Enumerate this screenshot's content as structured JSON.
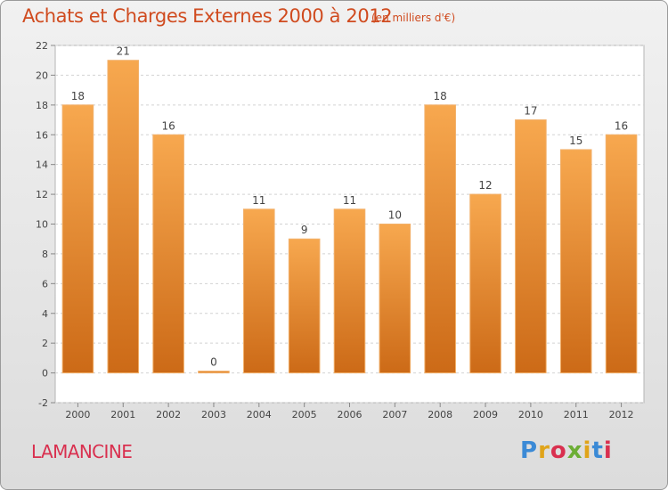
{
  "header": {
    "title": "Achats et Charges Externes 2000 à 2012",
    "subtitle": "(en milliers d'€)"
  },
  "footer": {
    "location": "LAMANCINE",
    "logo_text": "Proxiti"
  },
  "colors": {
    "bar_light": "#f7a84f",
    "bar_dark": "#cc6a17",
    "title": "#d04b1f",
    "location": "#d9304f"
  },
  "chart_data": {
    "type": "bar",
    "categories": [
      "2000",
      "2001",
      "2002",
      "2003",
      "2004",
      "2005",
      "2006",
      "2007",
      "2008",
      "2009",
      "2010",
      "2011",
      "2012"
    ],
    "values": [
      18,
      21,
      16,
      0,
      11,
      9,
      11,
      10,
      18,
      12,
      17,
      15,
      16
    ],
    "data_labels": [
      "18",
      "21",
      "16",
      "0",
      "11",
      "9",
      "11",
      "10",
      "18",
      "12",
      "17",
      "15",
      "16"
    ],
    "ylim": [
      -2,
      22
    ],
    "yticks": [
      -2,
      0,
      2,
      4,
      6,
      8,
      10,
      12,
      14,
      16,
      18,
      20,
      22
    ],
    "grid": true,
    "title": "Achats et Charges Externes 2000 à 2012",
    "xlabel": "",
    "ylabel": ""
  }
}
